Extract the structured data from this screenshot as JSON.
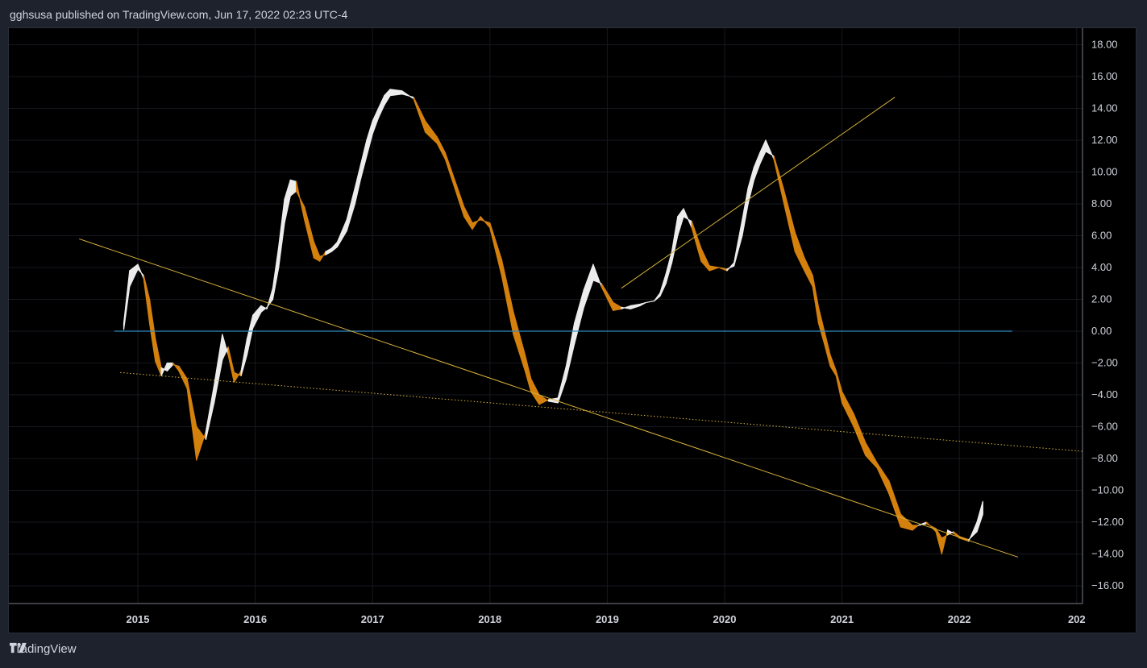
{
  "header": {
    "text": "gghsusa published on TradingView.com, Jun 17, 2022 02:23 UTC-4"
  },
  "footer": {
    "brand": "TradingView",
    "logo_icon": "tradingview-logo-icon"
  },
  "colors": {
    "background": "#000000",
    "frame": "#1e222d",
    "text": "#d1d4dc",
    "up_band": "#ececec",
    "down_band": "#d4800d",
    "zero_line": "#2e8bc0",
    "trendline": "#d7b23a"
  },
  "chart_data": {
    "type": "area",
    "title": "",
    "xlabel": "",
    "ylabel": "",
    "grid": true,
    "legend": "none",
    "x_ticks": [
      "2015",
      "2016",
      "2017",
      "2018",
      "2019",
      "2020",
      "2021",
      "2022",
      "202"
    ],
    "ylim": [
      -17,
      18.5
    ],
    "xlim": [
      2014.0,
      2023.3
    ],
    "y_ticks": [
      "18.00",
      "16.00",
      "14.00",
      "12.00",
      "10.00",
      "8.00",
      "6.00",
      "4.00",
      "2.00",
      "0.00",
      "−2.00",
      "−4.00",
      "−6.00",
      "−8.00",
      "−10.00",
      "−12.00",
      "−14.00",
      "−16.00"
    ],
    "y_tick_values": [
      18,
      16,
      14,
      12,
      10,
      8,
      6,
      4,
      2,
      0,
      -2,
      -4,
      -6,
      -8,
      -10,
      -12,
      -14,
      -16
    ],
    "zero_line": {
      "y": 0,
      "x_start": 2014.8,
      "x_end": 2022.45
    },
    "series": [
      {
        "x": [
          2014.88,
          2014.93,
          2015.0,
          2015.05,
          2015.1,
          2015.15,
          2015.2,
          2015.25,
          2015.3,
          2015.35,
          2015.42,
          2015.5,
          2015.58,
          2015.65,
          2015.72,
          2015.77,
          2015.82,
          2015.88,
          2015.93,
          2015.98,
          2016.05,
          2016.1,
          2016.15,
          2016.2,
          2016.25,
          2016.3,
          2016.35,
          2016.42,
          2016.5,
          2016.55,
          2016.6,
          2016.65,
          2016.7,
          2016.78,
          2016.85,
          2016.9,
          2016.95,
          2017.0,
          2017.05,
          2017.1,
          2017.15,
          2017.25,
          2017.35,
          2017.45,
          2017.55,
          2017.62,
          2017.7,
          2017.78,
          2017.85,
          2017.92,
          2018.0,
          2018.1,
          2018.2,
          2018.3,
          2018.35,
          2018.42,
          2018.5,
          2018.58,
          2018.65,
          2018.72,
          2018.8,
          2018.88,
          2018.95,
          2019.05,
          2019.12,
          2019.2,
          2019.28,
          2019.33,
          2019.4,
          2019.45,
          2019.5,
          2019.55,
          2019.6,
          2019.65,
          2019.72,
          2019.8,
          2019.87,
          2019.95,
          2020.02,
          2020.08,
          2020.15,
          2020.2,
          2020.25,
          2020.3,
          2020.35,
          2020.42,
          2020.5,
          2020.6,
          2020.68,
          2020.75,
          2020.8,
          2020.85,
          2020.9,
          2020.95,
          2021.0,
          2021.1,
          2021.2,
          2021.3,
          2021.4,
          2021.5,
          2021.6,
          2021.65,
          2021.72,
          2021.8,
          2021.85,
          2021.9,
          2021.95,
          2022.0,
          2022.08,
          2022.15,
          2022.2,
          2022.25,
          2022.3,
          2022.35,
          2022.4,
          2022.45
        ],
        "fast": [
          0.5,
          3.8,
          4.2,
          3.3,
          0.5,
          -1.9,
          -2.8,
          -2.0,
          -2.0,
          -2.5,
          -3.6,
          -8.1,
          -6.3,
          -3.4,
          -0.2,
          -1.5,
          -3.2,
          -2.5,
          -0.5,
          1.0,
          1.6,
          1.4,
          2.7,
          5.3,
          8.3,
          9.5,
          9.4,
          7.0,
          4.6,
          4.4,
          5.0,
          5.2,
          5.6,
          7.0,
          9.0,
          10.5,
          12.0,
          13.2,
          14.0,
          14.8,
          15.2,
          15.1,
          14.6,
          12.5,
          11.8,
          10.8,
          9.0,
          7.2,
          6.4,
          7.2,
          6.5,
          3.5,
          -0.2,
          -2.5,
          -3.8,
          -4.6,
          -4.3,
          -4.2,
          -2.2,
          0.5,
          2.6,
          4.2,
          2.8,
          1.3,
          1.4,
          1.6,
          1.7,
          1.8,
          1.9,
          2.4,
          3.6,
          5.0,
          7.2,
          7.7,
          6.5,
          4.4,
          3.8,
          4.0,
          3.8,
          4.3,
          7.0,
          9.0,
          10.3,
          11.2,
          12.0,
          10.8,
          8.2,
          5.0,
          3.8,
          2.8,
          0.5,
          -0.8,
          -2.2,
          -2.8,
          -4.5,
          -6.0,
          -7.8,
          -8.6,
          -10.2,
          -12.3,
          -12.5,
          -12.2,
          -12.0,
          -12.6,
          -14.0,
          -12.5,
          -12.7,
          -13.0,
          -13.2,
          -12.0,
          -10.7
        ],
        "slow": [
          0.1,
          2.8,
          3.9,
          3.5,
          2.0,
          -0.5,
          -2.3,
          -2.5,
          -2.1,
          -2.2,
          -3.0,
          -6.0,
          -6.8,
          -4.5,
          -1.8,
          -1.0,
          -2.6,
          -2.8,
          -1.5,
          0.2,
          1.2,
          1.5,
          2.0,
          4.0,
          6.8,
          8.5,
          8.8,
          7.8,
          5.6,
          4.7,
          4.8,
          5.0,
          5.3,
          6.3,
          8.0,
          9.6,
          11.0,
          12.4,
          13.4,
          14.2,
          14.8,
          14.9,
          14.7,
          13.2,
          12.2,
          11.2,
          9.5,
          7.8,
          6.8,
          7.0,
          6.8,
          4.5,
          1.2,
          -1.5,
          -3.0,
          -4.0,
          -4.4,
          -4.5,
          -3.0,
          -0.8,
          1.5,
          3.2,
          3.0,
          1.8,
          1.5,
          1.4,
          1.6,
          1.8,
          1.9,
          2.2,
          3.0,
          4.3,
          6.0,
          7.2,
          6.9,
          5.2,
          4.1,
          4.0,
          3.9,
          4.1,
          6.0,
          8.0,
          9.5,
          10.5,
          11.3,
          11.0,
          9.0,
          6.2,
          4.6,
          3.5,
          1.5,
          0.0,
          -1.5,
          -2.5,
          -3.8,
          -5.2,
          -7.0,
          -8.3,
          -9.4,
          -11.5,
          -12.2,
          -12.2,
          -12.1,
          -12.4,
          -13.0,
          -12.8,
          -12.6,
          -12.9,
          -13.1,
          -12.6,
          -11.5
        ]
      }
    ],
    "trendlines": [
      {
        "style": "solid",
        "x1": 2014.5,
        "y1": 5.8,
        "x2": 2022.5,
        "y2": -14.2
      },
      {
        "style": "solid",
        "x1": 2019.12,
        "y1": 2.7,
        "x2": 2021.45,
        "y2": 14.7
      },
      {
        "style": "dotted",
        "x1": 2014.85,
        "y1": -2.6,
        "x2": 2023.3,
        "y2": -7.7
      }
    ]
  }
}
